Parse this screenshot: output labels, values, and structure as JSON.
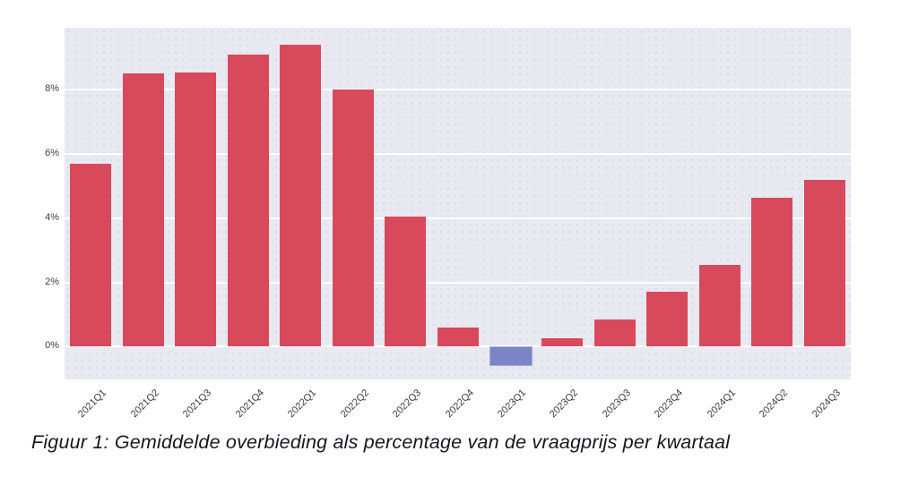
{
  "figure": {
    "caption": "Figuur 1: Gemiddelde overbieding als percentage van de vraagprijs per kwartaal"
  },
  "chart_data": {
    "type": "bar",
    "title": "",
    "xlabel": "",
    "ylabel": "",
    "categories": [
      "2021Q1",
      "2021Q2",
      "2021Q3",
      "2021Q4",
      "2022Q1",
      "2022Q2",
      "2022Q3",
      "2022Q4",
      "2023Q1",
      "2023Q2",
      "2023Q3",
      "2023Q4",
      "2024Q1",
      "2024Q2",
      "2024Q3"
    ],
    "values": [
      5.7,
      8.5,
      8.55,
      9.1,
      9.4,
      8.0,
      4.05,
      0.6,
      -0.6,
      0.25,
      0.85,
      1.7,
      2.55,
      4.65,
      5.2
    ],
    "ylim": [
      -1.02,
      9.93
    ],
    "yticks": [
      0,
      2,
      4,
      6,
      8
    ],
    "ytick_labels": [
      "0%",
      "2%",
      "4%",
      "6%",
      "8%"
    ],
    "xtick_angle": -45,
    "grid": true,
    "legend": false,
    "colors": {
      "positive": "#d8495c",
      "negative": "#7b84c7",
      "negative_border": "#a6addb",
      "plot_background": "#e9e9f1",
      "gridline": "#ffffff",
      "tick_text": "#3b3e46",
      "caption_text": "#15171d"
    }
  }
}
